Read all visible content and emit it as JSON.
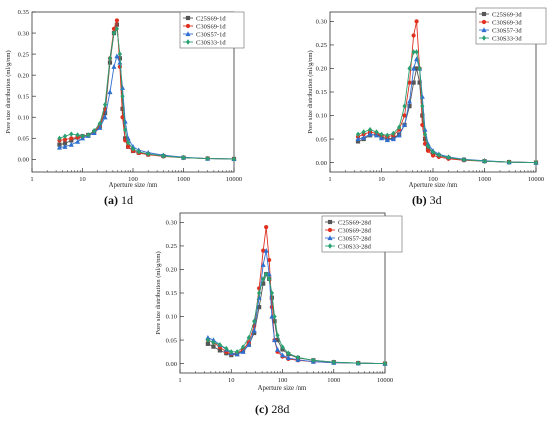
{
  "chart_data": [
    {
      "type": "line",
      "caption_label": "(a)",
      "caption_text": "1d",
      "xlabel": "Aperture size /nm",
      "ylabel": "Pore size distribution (ml/g/nm)",
      "xscale": "log",
      "xlim": [
        1,
        10000
      ],
      "ylim": [
        -0.03,
        0.35
      ],
      "xticks": [
        1,
        10,
        100,
        1000,
        10000
      ],
      "xtick_labels": [
        "1",
        "10",
        "100",
        "1000",
        "10000"
      ],
      "yticks": [
        0.0,
        0.05,
        0.1,
        0.15,
        0.2,
        0.25,
        0.3,
        0.35
      ],
      "ytick_labels": [
        "0.00",
        "0.05",
        "0.10",
        "0.15",
        "0.20",
        "0.25",
        "0.30",
        "0.35"
      ],
      "legend": "top-right",
      "series": [
        {
          "name": "C25S69-1d",
          "color": "#555555",
          "marker": "square",
          "x": [
            3.5,
            4.5,
            6,
            8,
            10,
            13,
            17,
            22,
            28,
            35,
            42,
            48,
            55,
            62,
            70,
            80,
            100,
            130,
            200,
            400,
            1000,
            3000,
            10000
          ],
          "y": [
            0.035,
            0.038,
            0.045,
            0.052,
            0.055,
            0.058,
            0.065,
            0.078,
            0.11,
            0.23,
            0.3,
            0.32,
            0.24,
            0.12,
            0.05,
            0.03,
            0.02,
            0.016,
            0.012,
            0.008,
            0.004,
            0.002,
            0.001
          ]
        },
        {
          "name": "C30S69-1d",
          "color": "#e03020",
          "marker": "circle",
          "x": [
            3.5,
            4.5,
            6,
            8,
            10,
            13,
            17,
            22,
            28,
            35,
            42,
            48,
            55,
            62,
            70,
            80,
            100,
            130,
            200,
            400,
            1000,
            3000,
            10000
          ],
          "y": [
            0.045,
            0.047,
            0.05,
            0.052,
            0.054,
            0.058,
            0.066,
            0.08,
            0.12,
            0.24,
            0.31,
            0.33,
            0.22,
            0.1,
            0.045,
            0.03,
            0.02,
            0.015,
            0.011,
            0.007,
            0.004,
            0.002,
            0.001
          ]
        },
        {
          "name": "C30S57-1d",
          "color": "#2f6fd0",
          "marker": "triangle",
          "x": [
            3.5,
            4.5,
            6,
            8,
            10,
            13,
            17,
            22,
            28,
            35,
            42,
            48,
            55,
            62,
            70,
            80,
            100,
            130,
            200,
            400,
            1000,
            3000,
            10000
          ],
          "y": [
            0.028,
            0.03,
            0.035,
            0.042,
            0.05,
            0.056,
            0.063,
            0.075,
            0.1,
            0.16,
            0.22,
            0.245,
            0.23,
            0.17,
            0.09,
            0.05,
            0.03,
            0.022,
            0.016,
            0.01,
            0.005,
            0.002,
            0.001
          ]
        },
        {
          "name": "C30S33-1d",
          "color": "#2aa070",
          "marker": "diamond",
          "x": [
            3.5,
            4.5,
            6,
            8,
            10,
            13,
            17,
            22,
            28,
            35,
            42,
            48,
            55,
            62,
            70,
            80,
            100,
            130,
            200,
            400,
            1000,
            3000,
            10000
          ],
          "y": [
            0.05,
            0.055,
            0.06,
            0.058,
            0.055,
            0.058,
            0.068,
            0.085,
            0.13,
            0.24,
            0.3,
            0.31,
            0.25,
            0.15,
            0.07,
            0.04,
            0.025,
            0.018,
            0.013,
            0.008,
            0.004,
            0.002,
            0.001
          ]
        }
      ]
    },
    {
      "type": "line",
      "caption_label": "(b)",
      "caption_text": "3d",
      "xlabel": "Aperture size /nm",
      "ylabel": "Pore size distribution (ml/g/nm)",
      "xscale": "log",
      "xlim": [
        1,
        10000
      ],
      "ylim": [
        -0.02,
        0.32
      ],
      "xticks": [
        1,
        10,
        100,
        1000,
        10000
      ],
      "xtick_labels": [
        "1",
        "10",
        "100",
        "1000",
        "10000"
      ],
      "yticks": [
        0.0,
        0.05,
        0.1,
        0.15,
        0.2,
        0.25,
        0.3
      ],
      "ytick_labels": [
        "0.00",
        "0.05",
        "0.10",
        "0.15",
        "0.20",
        "0.25",
        "0.30"
      ],
      "legend": "top-right",
      "series": [
        {
          "name": "C25S69-3d",
          "color": "#555555",
          "marker": "square",
          "x": [
            3.5,
            4.5,
            6,
            8,
            10,
            13,
            17,
            22,
            28,
            35,
            42,
            48,
            55,
            62,
            70,
            80,
            100,
            130,
            200,
            400,
            1000,
            3000,
            10000
          ],
          "y": [
            0.045,
            0.05,
            0.058,
            0.06,
            0.055,
            0.05,
            0.052,
            0.06,
            0.08,
            0.12,
            0.17,
            0.2,
            0.17,
            0.1,
            0.05,
            0.03,
            0.02,
            0.015,
            0.01,
            0.006,
            0.003,
            0.001,
            0.0
          ]
        },
        {
          "name": "C30S69-3d",
          "color": "#e03020",
          "marker": "circle",
          "x": [
            3.5,
            4.5,
            6,
            8,
            10,
            13,
            17,
            22,
            28,
            35,
            42,
            48,
            55,
            62,
            70,
            80,
            100,
            130,
            200,
            400,
            1000,
            3000,
            10000
          ],
          "y": [
            0.055,
            0.06,
            0.065,
            0.062,
            0.058,
            0.055,
            0.058,
            0.07,
            0.1,
            0.17,
            0.27,
            0.3,
            0.2,
            0.08,
            0.04,
            0.025,
            0.015,
            0.012,
            0.008,
            0.005,
            0.003,
            0.001,
            0.0
          ]
        },
        {
          "name": "C30S57-3d",
          "color": "#2f6fd0",
          "marker": "triangle",
          "x": [
            3.5,
            4.5,
            6,
            8,
            10,
            13,
            17,
            22,
            28,
            35,
            42,
            48,
            55,
            62,
            70,
            80,
            100,
            130,
            200,
            400,
            1000,
            3000,
            10000
          ],
          "y": [
            0.05,
            0.053,
            0.06,
            0.058,
            0.052,
            0.048,
            0.05,
            0.058,
            0.08,
            0.13,
            0.2,
            0.22,
            0.2,
            0.14,
            0.07,
            0.04,
            0.025,
            0.018,
            0.012,
            0.007,
            0.004,
            0.001,
            0.0
          ]
        },
        {
          "name": "C30S33-3d",
          "color": "#2aa070",
          "marker": "diamond",
          "x": [
            3.5,
            4.5,
            6,
            8,
            10,
            13,
            17,
            22,
            28,
            35,
            42,
            48,
            55,
            62,
            70,
            80,
            100,
            130,
            200,
            400,
            1000,
            3000,
            10000
          ],
          "y": [
            0.06,
            0.065,
            0.07,
            0.065,
            0.06,
            0.058,
            0.062,
            0.075,
            0.12,
            0.2,
            0.235,
            0.235,
            0.2,
            0.12,
            0.06,
            0.035,
            0.022,
            0.016,
            0.011,
            0.006,
            0.003,
            0.001,
            0.0
          ]
        }
      ]
    },
    {
      "type": "line",
      "caption_label": "(c)",
      "caption_text": "28d",
      "xlabel": "Aperture size /nm",
      "ylabel": "Pore size distribution (ml/g/nm)",
      "xscale": "log",
      "xlim": [
        1,
        10000
      ],
      "ylim": [
        -0.02,
        0.32
      ],
      "xticks": [
        1,
        10,
        100,
        1000,
        10000
      ],
      "xtick_labels": [
        "1",
        "10",
        "100",
        "1000",
        "10000"
      ],
      "yticks": [
        0.0,
        0.05,
        0.1,
        0.15,
        0.2,
        0.25,
        0.3
      ],
      "ytick_labels": [
        "0.00",
        "0.05",
        "0.10",
        "0.15",
        "0.20",
        "0.25",
        "0.30"
      ],
      "legend": "top-right",
      "series": [
        {
          "name": "C25S69-28d",
          "color": "#555555",
          "marker": "square",
          "x": [
            3.5,
            4.5,
            6,
            8,
            10,
            13,
            17,
            22,
            28,
            35,
            42,
            48,
            55,
            62,
            70,
            80,
            100,
            130,
            200,
            400,
            1000,
            3000,
            10000
          ],
          "y": [
            0.042,
            0.036,
            0.028,
            0.022,
            0.018,
            0.02,
            0.028,
            0.04,
            0.065,
            0.12,
            0.17,
            0.19,
            0.18,
            0.14,
            0.09,
            0.05,
            0.03,
            0.02,
            0.012,
            0.007,
            0.003,
            0.001,
            0.0
          ]
        },
        {
          "name": "C30S69-28d",
          "color": "#e03020",
          "marker": "circle",
          "x": [
            3.5,
            4.5,
            6,
            8,
            10,
            13,
            17,
            22,
            28,
            35,
            42,
            48,
            55,
            62,
            70,
            80,
            100,
            130,
            200,
            400,
            1000,
            3000,
            10000
          ],
          "y": [
            0.05,
            0.045,
            0.035,
            0.025,
            0.02,
            0.022,
            0.03,
            0.045,
            0.08,
            0.16,
            0.24,
            0.29,
            0.22,
            0.12,
            0.05,
            0.025,
            0.015,
            0.01,
            0.007,
            0.004,
            0.002,
            0.001,
            0.0
          ]
        },
        {
          "name": "C30S57-28d",
          "color": "#2f6fd0",
          "marker": "triangle",
          "x": [
            3.5,
            4.5,
            6,
            8,
            10,
            13,
            17,
            22,
            28,
            35,
            42,
            48,
            55,
            62,
            70,
            80,
            100,
            130,
            200,
            400,
            1000,
            3000,
            10000
          ],
          "y": [
            0.055,
            0.05,
            0.04,
            0.03,
            0.022,
            0.02,
            0.025,
            0.04,
            0.07,
            0.14,
            0.21,
            0.24,
            0.19,
            0.1,
            0.05,
            0.03,
            0.018,
            0.012,
            0.008,
            0.004,
            0.002,
            0.001,
            0.0
          ]
        },
        {
          "name": "C30S33-28d",
          "color": "#2aa070",
          "marker": "diamond",
          "x": [
            3.5,
            4.5,
            6,
            8,
            10,
            13,
            17,
            22,
            28,
            35,
            42,
            48,
            55,
            62,
            70,
            80,
            100,
            130,
            200,
            400,
            1000,
            3000,
            10000
          ],
          "y": [
            0.05,
            0.045,
            0.04,
            0.032,
            0.025,
            0.025,
            0.035,
            0.055,
            0.09,
            0.15,
            0.18,
            0.19,
            0.18,
            0.15,
            0.1,
            0.06,
            0.035,
            0.022,
            0.013,
            0.007,
            0.003,
            0.001,
            0.0
          ]
        }
      ]
    }
  ]
}
